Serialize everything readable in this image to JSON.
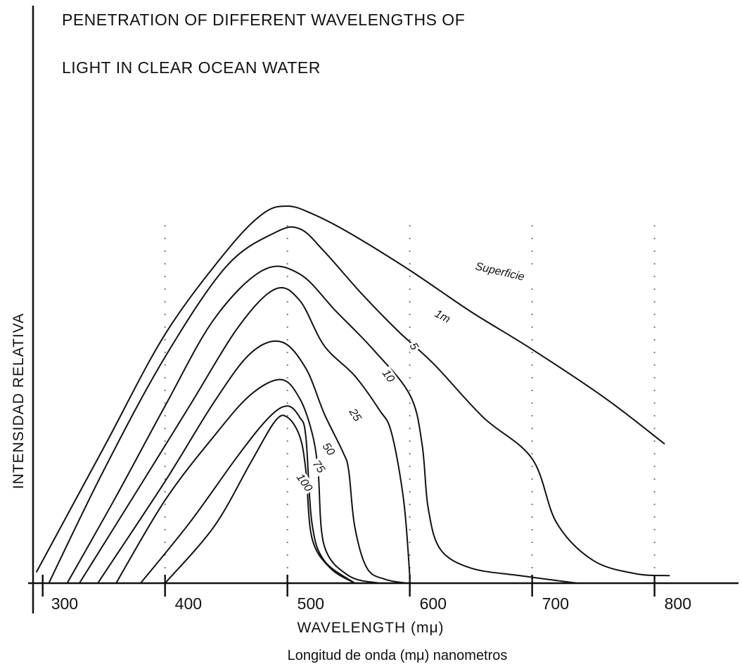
{
  "chart_data": {
    "type": "line",
    "title": [
      "PENETRATION OF DIFFERENT WAVELENGTHS OF",
      "LIGHT IN CLEAR OCEAN WATER"
    ],
    "xlabel": "WAVELENGTH (mμ)",
    "xlabel_secondary": "Longitud de onda (mμ) nanometros",
    "ylabel": "INTENSIDAD RELATIVA",
    "xlim": [
      295,
      860
    ],
    "ylim": [
      0,
      100
    ],
    "x_ticks": [
      "300",
      "400",
      "500",
      "600",
      "700",
      "800"
    ],
    "grid": false,
    "series": [
      {
        "name": "Superficie",
        "label": "Superficie",
        "x": [
          295,
          350,
          400,
          450,
          480,
          500,
          520,
          550,
          600,
          650,
          700,
          760,
          808
        ],
        "y": [
          3,
          36,
          66,
          88,
          98,
          100,
          98,
          93,
          83,
          72,
          62,
          49,
          37
        ]
      },
      {
        "name": "1m",
        "label": "1m",
        "x": [
          305,
          350,
          400,
          450,
          490,
          510,
          530,
          560,
          590,
          620,
          660,
          700,
          720,
          750,
          785,
          812
        ],
        "y": [
          0,
          30,
          60,
          84,
          93,
          94,
          88,
          77,
          67,
          58,
          44,
          33,
          16,
          6,
          2.5,
          2
        ]
      },
      {
        "name": "5",
        "label": "5",
        "x": [
          320,
          360,
          400,
          440,
          480,
          510,
          540,
          570,
          600,
          610,
          615,
          625,
          650,
          690,
          737
        ],
        "y": [
          0,
          23,
          47,
          70,
          83,
          82,
          72,
          62,
          50,
          37,
          20,
          9,
          4,
          2,
          0
        ]
      },
      {
        "name": "10",
        "label": "10",
        "x": [
          330,
          380,
          420,
          460,
          490,
          510,
          530,
          555,
          575,
          585,
          595,
          600
        ],
        "y": [
          0,
          26,
          47,
          68,
          78,
          75,
          63,
          55,
          46,
          40,
          22,
          2
        ]
      },
      {
        "name": "25",
        "label": "25",
        "x": [
          345,
          400,
          440,
          470,
          495,
          515,
          530,
          545,
          550,
          555,
          565,
          580,
          598
        ],
        "y": [
          0,
          27,
          48,
          61,
          64,
          57,
          45,
          35,
          30,
          15,
          4,
          1,
          0
        ]
      },
      {
        "name": "50",
        "label": "50",
        "x": [
          360,
          400,
          440,
          470,
          495,
          510,
          520,
          525,
          530,
          550,
          575
        ],
        "y": [
          0,
          22,
          39,
          50,
          54,
          49,
          40,
          30,
          10,
          2,
          0
        ]
      },
      {
        "name": "75",
        "label": "75",
        "x": [
          380,
          420,
          460,
          485,
          500,
          510,
          515,
          520,
          530,
          555
        ],
        "y": [
          0,
          16,
          34,
          44,
          47,
          44,
          39,
          16,
          6,
          0
        ]
      },
      {
        "name": "100",
        "label": "100",
        "x": [
          400,
          440,
          470,
          490,
          500,
          510,
          515,
          520,
          535,
          555
        ],
        "y": [
          0,
          15,
          32,
          43,
          44,
          39,
          30,
          12,
          4,
          0
        ]
      }
    ]
  }
}
